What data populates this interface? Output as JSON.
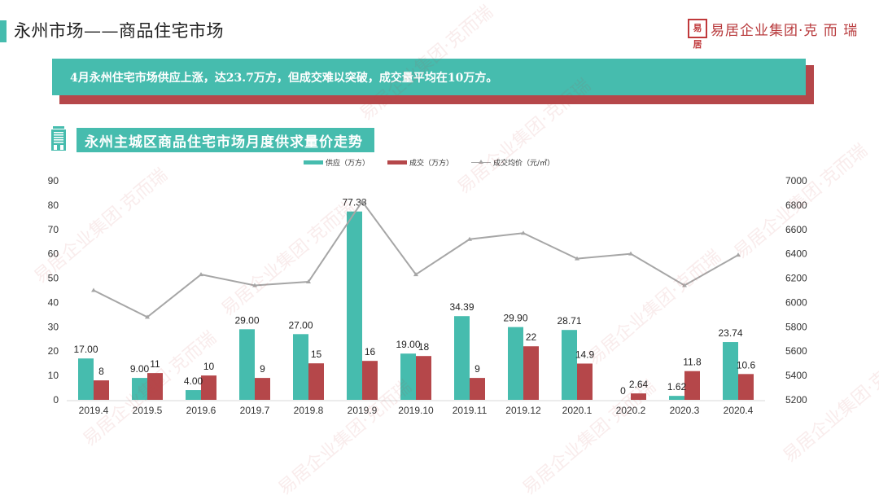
{
  "header": {
    "title": "永州市场——商品住宅市场",
    "brand_seal": "易居",
    "brand_text": "易居企业集团·克 而 瑞"
  },
  "banner": {
    "text": "4月永州住宅市场供应上涨，达23.7万方，但成交难以突破，成交量平均在10万方。"
  },
  "section": {
    "title": "永州主城区商品住宅市场月度供求量价走势",
    "icon": "building-icon"
  },
  "colors": {
    "accent_teal": "#46bcae",
    "accent_red": "#b5474a",
    "line_gray": "#a6a6a6"
  },
  "watermark": "易居企业集团·克而瑞",
  "chart_data": {
    "type": "bar",
    "title": "永州主城区商品住宅市场月度供求量价走势",
    "categories": [
      "2019.4",
      "2019.5",
      "2019.6",
      "2019.7",
      "2019.8",
      "2019.9",
      "2019.10",
      "2019.11",
      "2019.12",
      "2020.1",
      "2020.2",
      "2020.3",
      "2020.4"
    ],
    "series": [
      {
        "name": "供应（万方）",
        "type": "bar",
        "axis": "left",
        "color": "#46bcae",
        "values": [
          17.0,
          9.0,
          4.0,
          29.0,
          27.0,
          77.38,
          19.0,
          34.39,
          29.9,
          28.71,
          0,
          1.62,
          23.74
        ],
        "labels": [
          "17.00",
          "9.00",
          "4.00",
          "29.00",
          "27.00",
          "77.38",
          "19.00",
          "34.39",
          "29.90",
          "28.71",
          "0",
          "1.62",
          "23.74"
        ]
      },
      {
        "name": "成交（万方）",
        "type": "bar",
        "axis": "left",
        "color": "#b5474a",
        "values": [
          8,
          11,
          10,
          9,
          15,
          16,
          18,
          9,
          22,
          14.9,
          2.64,
          11.8,
          10.6
        ],
        "labels": [
          "8",
          "11",
          "10",
          "9",
          "15",
          "16",
          "18",
          "9",
          "22",
          "14.9",
          "2.64",
          "11.8",
          "10.6"
        ]
      },
      {
        "name": "成交均价（元/㎡）",
        "type": "line",
        "axis": "right",
        "color": "#a6a6a6",
        "values": [
          6100,
          5880,
          6230,
          6140,
          6170,
          6830,
          6230,
          6520,
          6570,
          6360,
          6400,
          6140,
          6390
        ]
      }
    ],
    "left_axis": {
      "ylim": [
        0,
        90
      ],
      "ticks": [
        "0",
        "10",
        "20",
        "30",
        "40",
        "50",
        "60",
        "70",
        "80",
        "90"
      ]
    },
    "right_axis": {
      "ylim": [
        5200,
        7000
      ],
      "ticks": [
        "5200",
        "5400",
        "5600",
        "5800",
        "6000",
        "6200",
        "6400",
        "6600",
        "6800",
        "7000"
      ]
    },
    "legend": {
      "position": "top",
      "entries": [
        "供应（万方）",
        "成交（万方）",
        "成交均价（元/㎡）"
      ]
    },
    "grid": false
  }
}
